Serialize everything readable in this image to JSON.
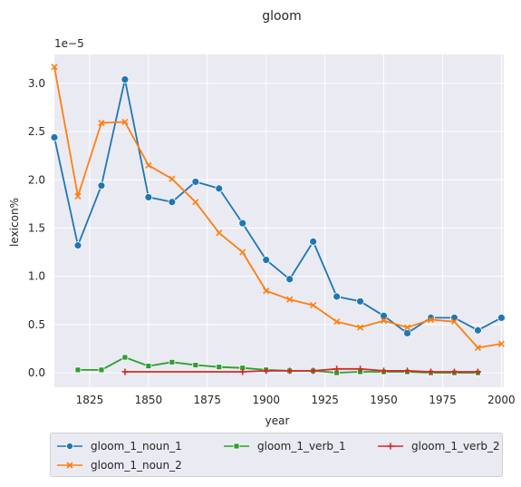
{
  "chart_data": {
    "type": "line",
    "title": "gloom",
    "xlabel": "year",
    "ylabel": "lexicon%",
    "y_offset_label": "1e−5",
    "xlim": [
      1810,
      2001
    ],
    "ylim": [
      -0.15,
      3.3
    ],
    "xticks": [
      1825,
      1850,
      1875,
      1900,
      1925,
      1950,
      1975,
      2000
    ],
    "yticks": [
      0.0,
      0.5,
      1.0,
      1.5,
      2.0,
      2.5,
      3.0
    ],
    "ytick_labels": [
      "0.0",
      "0.5",
      "1.0",
      "1.5",
      "2.0",
      "2.5",
      "3.0"
    ],
    "grid": true,
    "legend_position": "below",
    "series": [
      {
        "name": "gloom_1_noun_1",
        "color": "#1f77b4",
        "marker": "circle",
        "x": [
          1810,
          1820,
          1830,
          1840,
          1850,
          1860,
          1870,
          1880,
          1890,
          1900,
          1910,
          1920,
          1930,
          1940,
          1950,
          1960,
          1970,
          1980,
          1990,
          2000
        ],
        "y": [
          2.44,
          1.32,
          1.94,
          3.04,
          1.82,
          1.77,
          1.98,
          1.91,
          1.55,
          1.17,
          0.97,
          1.36,
          0.79,
          0.74,
          0.59,
          0.41,
          0.57,
          0.57,
          0.44,
          0.57
        ]
      },
      {
        "name": "gloom_1_noun_2",
        "color": "#ff7f0e",
        "marker": "x",
        "x": [
          1810,
          1820,
          1830,
          1840,
          1850,
          1860,
          1870,
          1880,
          1890,
          1900,
          1910,
          1920,
          1930,
          1940,
          1950,
          1960,
          1970,
          1980,
          1990,
          2000
        ],
        "y": [
          3.17,
          1.83,
          2.59,
          2.6,
          2.15,
          2.01,
          1.77,
          1.45,
          1.25,
          0.85,
          0.76,
          0.7,
          0.53,
          0.47,
          0.54,
          0.47,
          0.55,
          0.53,
          0.26,
          0.3
        ]
      },
      {
        "name": "gloom_1_verb_1",
        "color": "#2ca02c",
        "marker": "square",
        "x": [
          1820,
          1830,
          1840,
          1850,
          1860,
          1870,
          1880,
          1890,
          1900,
          1910,
          1920,
          1930,
          1940,
          1950,
          1960,
          1970,
          1980,
          1990
        ],
        "y": [
          0.03,
          0.03,
          0.16,
          0.07,
          0.11,
          0.08,
          0.06,
          0.05,
          0.03,
          0.02,
          0.02,
          0.0,
          0.01,
          0.01,
          0.01,
          0.0,
          0.0,
          0.0
        ]
      },
      {
        "name": "gloom_1_verb_2",
        "color": "#d62728",
        "marker": "plus",
        "x": [
          1840,
          1890,
          1900,
          1910,
          1920,
          1930,
          1940,
          1950,
          1960,
          1970,
          1980,
          1990
        ],
        "y": [
          0.01,
          0.01,
          0.02,
          0.02,
          0.02,
          0.04,
          0.04,
          0.02,
          0.02,
          0.01,
          0.01,
          0.01
        ]
      }
    ]
  }
}
